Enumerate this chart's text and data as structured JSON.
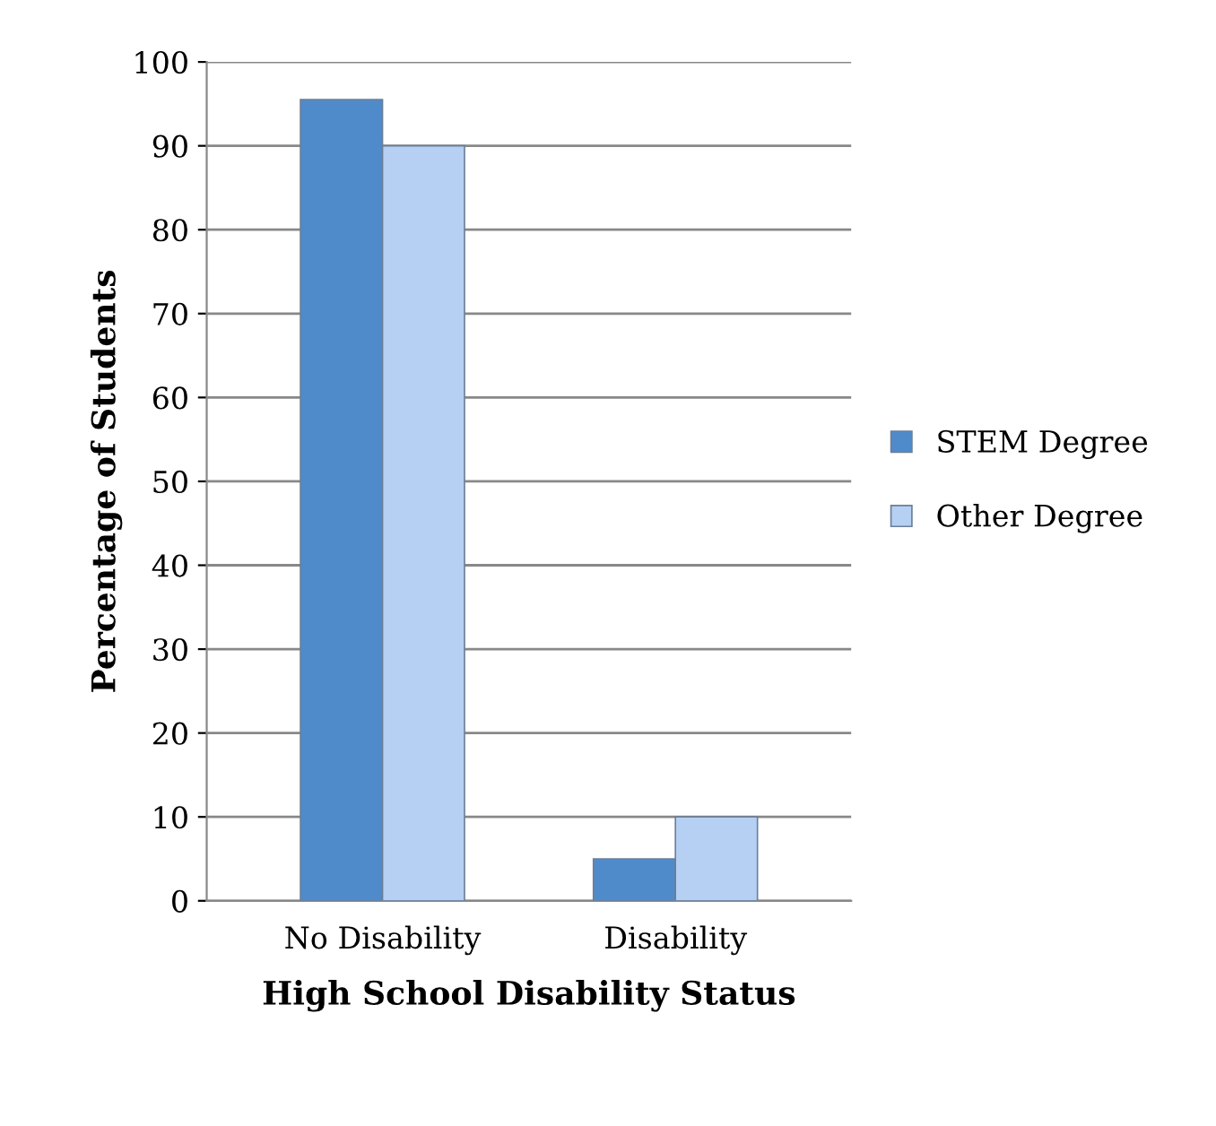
{
  "chart_data": {
    "type": "bar",
    "xlabel": "High School Disability Status",
    "ylabel": "Percentage of Students",
    "categories": [
      "No Disability",
      "Disability"
    ],
    "series": [
      {
        "name": "STEM Degree",
        "color": "#4f8bcb",
        "values": [
          95.5,
          5
        ]
      },
      {
        "name": "Other Degree",
        "color": "#b5d0f2",
        "values": [
          90,
          10
        ]
      }
    ],
    "ylim": [
      0,
      100
    ],
    "yticks": [
      0,
      10,
      20,
      30,
      40,
      50,
      60,
      70,
      80,
      90,
      100
    ],
    "grid": "y",
    "legend": "right"
  }
}
